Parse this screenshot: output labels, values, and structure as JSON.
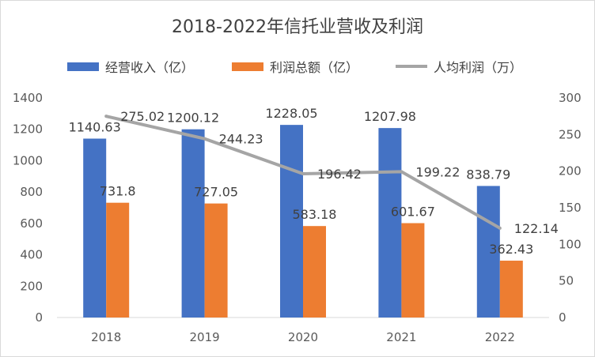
{
  "chart_data": {
    "type": "bar+line",
    "title": "2018-2022年信托业营收及利润",
    "categories": [
      "2018",
      "2019",
      "2020",
      "2021",
      "2022"
    ],
    "series": [
      {
        "name": "经营收入（亿）",
        "type": "bar",
        "axis": "left",
        "color": "#4472c4",
        "values": [
          1140.63,
          1200.12,
          1228.05,
          1207.98,
          838.79
        ],
        "labels": [
          "1140.63",
          "1200.12",
          "1228.05",
          "1207.98",
          "838.79"
        ]
      },
      {
        "name": "利润总额（亿）",
        "type": "bar",
        "axis": "left",
        "color": "#ed7d31",
        "values": [
          731.8,
          727.05,
          583.18,
          601.67,
          362.43
        ],
        "labels": [
          "731.8",
          "727.05",
          "583.18",
          "601.67",
          "362.43"
        ]
      },
      {
        "name": "人均利润（万）",
        "type": "line",
        "axis": "right",
        "color": "#a5a5a5",
        "values": [
          275.02,
          244.23,
          196.42,
          199.22,
          122.14
        ],
        "labels": [
          "275.02",
          "244.23",
          "196.42",
          "199.22",
          "122.14"
        ]
      }
    ],
    "y_left": {
      "min": 0,
      "max": 1400,
      "ticks": [
        "0",
        "200",
        "400",
        "600",
        "800",
        "1000",
        "1200",
        "1400"
      ]
    },
    "y_right": {
      "min": 0,
      "max": 300,
      "ticks": [
        "0",
        "50",
        "100",
        "150",
        "200",
        "250",
        "300"
      ]
    },
    "grid": false,
    "legend_position": "top"
  }
}
